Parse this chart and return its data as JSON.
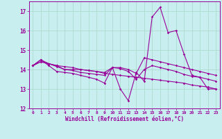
{
  "xlabel": "Windchill (Refroidissement éolien,°C)",
  "xlim": [
    -0.5,
    23.5
  ],
  "ylim": [
    12,
    17.5
  ],
  "yticks": [
    12,
    13,
    14,
    15,
    16,
    17
  ],
  "xticks": [
    0,
    1,
    2,
    3,
    4,
    5,
    6,
    7,
    8,
    9,
    10,
    11,
    12,
    13,
    14,
    15,
    16,
    17,
    18,
    19,
    20,
    21,
    22,
    23
  ],
  "bg_color": "#c8eef0",
  "grid_color": "#a8d8c8",
  "line_color": "#990099",
  "series": [
    [
      14.2,
      14.5,
      14.2,
      13.9,
      13.85,
      13.8,
      13.7,
      13.6,
      13.5,
      13.3,
      14.1,
      13.0,
      12.4,
      13.85,
      13.4,
      16.7,
      17.2,
      15.9,
      16.0,
      14.8,
      13.7,
      13.6,
      13.0,
      13.0
    ],
    [
      14.2,
      14.5,
      14.3,
      14.2,
      14.0,
      14.0,
      14.0,
      13.95,
      13.9,
      13.85,
      14.1,
      14.1,
      14.0,
      13.8,
      14.6,
      14.5,
      14.4,
      14.3,
      14.2,
      14.1,
      14.0,
      13.9,
      13.8,
      13.7
    ],
    [
      14.2,
      14.4,
      14.3,
      14.15,
      14.0,
      13.95,
      13.85,
      13.8,
      13.75,
      13.7,
      14.1,
      14.05,
      13.9,
      13.5,
      14.0,
      14.2,
      14.1,
      14.0,
      13.9,
      13.75,
      13.65,
      13.6,
      13.5,
      13.4
    ],
    [
      14.2,
      14.4,
      14.3,
      14.2,
      14.15,
      14.1,
      14.0,
      13.95,
      13.9,
      13.8,
      13.75,
      13.7,
      13.65,
      13.6,
      13.55,
      13.5,
      13.45,
      13.4,
      13.35,
      13.3,
      13.2,
      13.15,
      13.1,
      13.0
    ]
  ]
}
